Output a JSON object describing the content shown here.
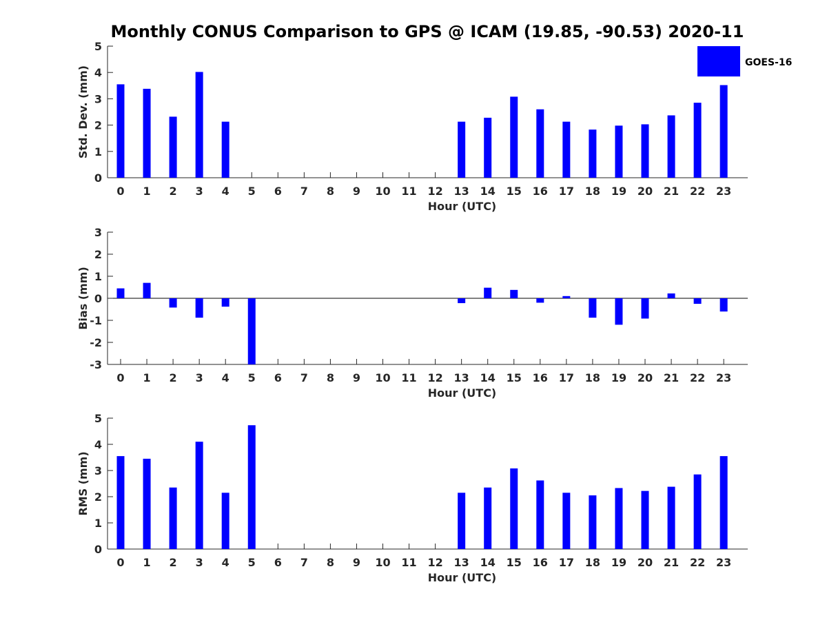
{
  "chart_data": {
    "type": "bar",
    "title": "Monthly CONUS Comparison to GPS @ ICAM (19.85, -90.53) 2020-11",
    "categories": [
      "0",
      "1",
      "2",
      "3",
      "4",
      "5",
      "6",
      "7",
      "8",
      "9",
      "10",
      "11",
      "12",
      "13",
      "14",
      "15",
      "16",
      "17",
      "18",
      "19",
      "20",
      "21",
      "22",
      "23"
    ],
    "legend": {
      "label": "GOES-16",
      "placement": "top-right",
      "color": "#0000ff"
    },
    "bar_color": "#0000ff",
    "panels": [
      {
        "name": "std-dev",
        "xlabel": "Hour (UTC)",
        "ylabel": "Std. Dev. (mm)",
        "ylim": [
          0,
          5
        ],
        "yticks": [
          "0",
          "1",
          "2",
          "3",
          "4",
          "5"
        ],
        "values": [
          3.55,
          3.38,
          2.32,
          4.02,
          2.13,
          null,
          null,
          null,
          null,
          null,
          null,
          null,
          null,
          2.13,
          2.28,
          3.08,
          2.6,
          2.13,
          1.83,
          1.98,
          2.03,
          2.37,
          2.85,
          3.52
        ]
      },
      {
        "name": "bias",
        "xlabel": "Hour (UTC)",
        "ylabel": "Bias (mm)",
        "ylim": [
          -3,
          3
        ],
        "yticks": [
          "-3",
          "-2",
          "-1",
          "0",
          "1",
          "2",
          "3"
        ],
        "values": [
          0.45,
          0.7,
          -0.42,
          -0.88,
          -0.38,
          -3.0,
          null,
          null,
          null,
          null,
          null,
          null,
          null,
          -0.22,
          0.48,
          0.38,
          -0.2,
          0.1,
          -0.88,
          -1.2,
          -0.92,
          0.22,
          -0.25,
          -0.6
        ]
      },
      {
        "name": "rms",
        "xlabel": "Hour (UTC)",
        "ylabel": "RMS (mm)",
        "ylim": [
          0,
          5
        ],
        "yticks": [
          "0",
          "1",
          "2",
          "3",
          "4",
          "5"
        ],
        "values": [
          3.55,
          3.45,
          2.35,
          4.1,
          2.15,
          4.73,
          null,
          null,
          null,
          null,
          null,
          null,
          null,
          2.15,
          2.35,
          3.08,
          2.62,
          2.15,
          2.05,
          2.33,
          2.22,
          2.38,
          2.85,
          3.55
        ]
      }
    ]
  }
}
